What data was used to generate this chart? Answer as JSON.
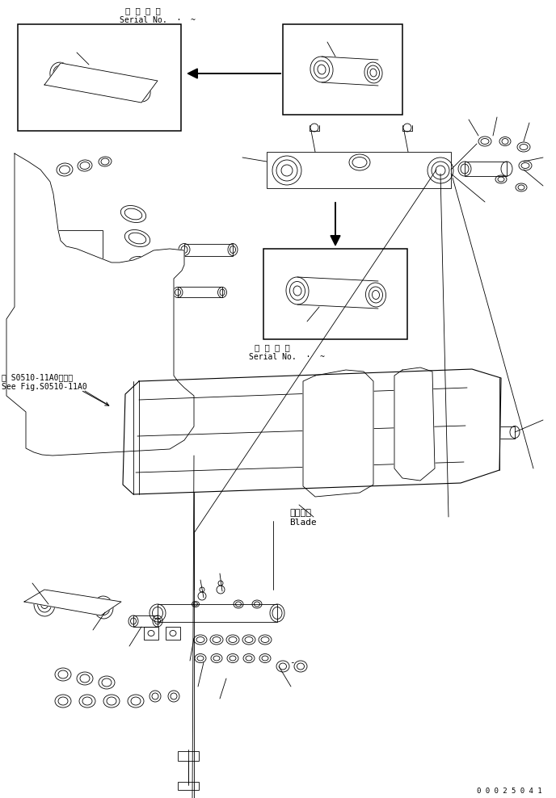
{
  "background_color": "#ffffff",
  "fig_width": 6.88,
  "fig_height": 9.88,
  "dpi": 100,
  "top_text1": "適 用 号 機",
  "top_text2": "Serial No.  ·  ~",
  "mid_left_text1": "第 S0510-11A0図参照",
  "mid_left_text2": "See Fig.S0510-11A0",
  "mid_right_text1": "適 用 号 機",
  "mid_right_text2": "Serial No.  ·  ~",
  "blade_label_jp": "ブレード",
  "blade_label_en": "Blade",
  "bottom_right_code": "0 0 0 2 5 0 4 1",
  "line_color": "#000000"
}
